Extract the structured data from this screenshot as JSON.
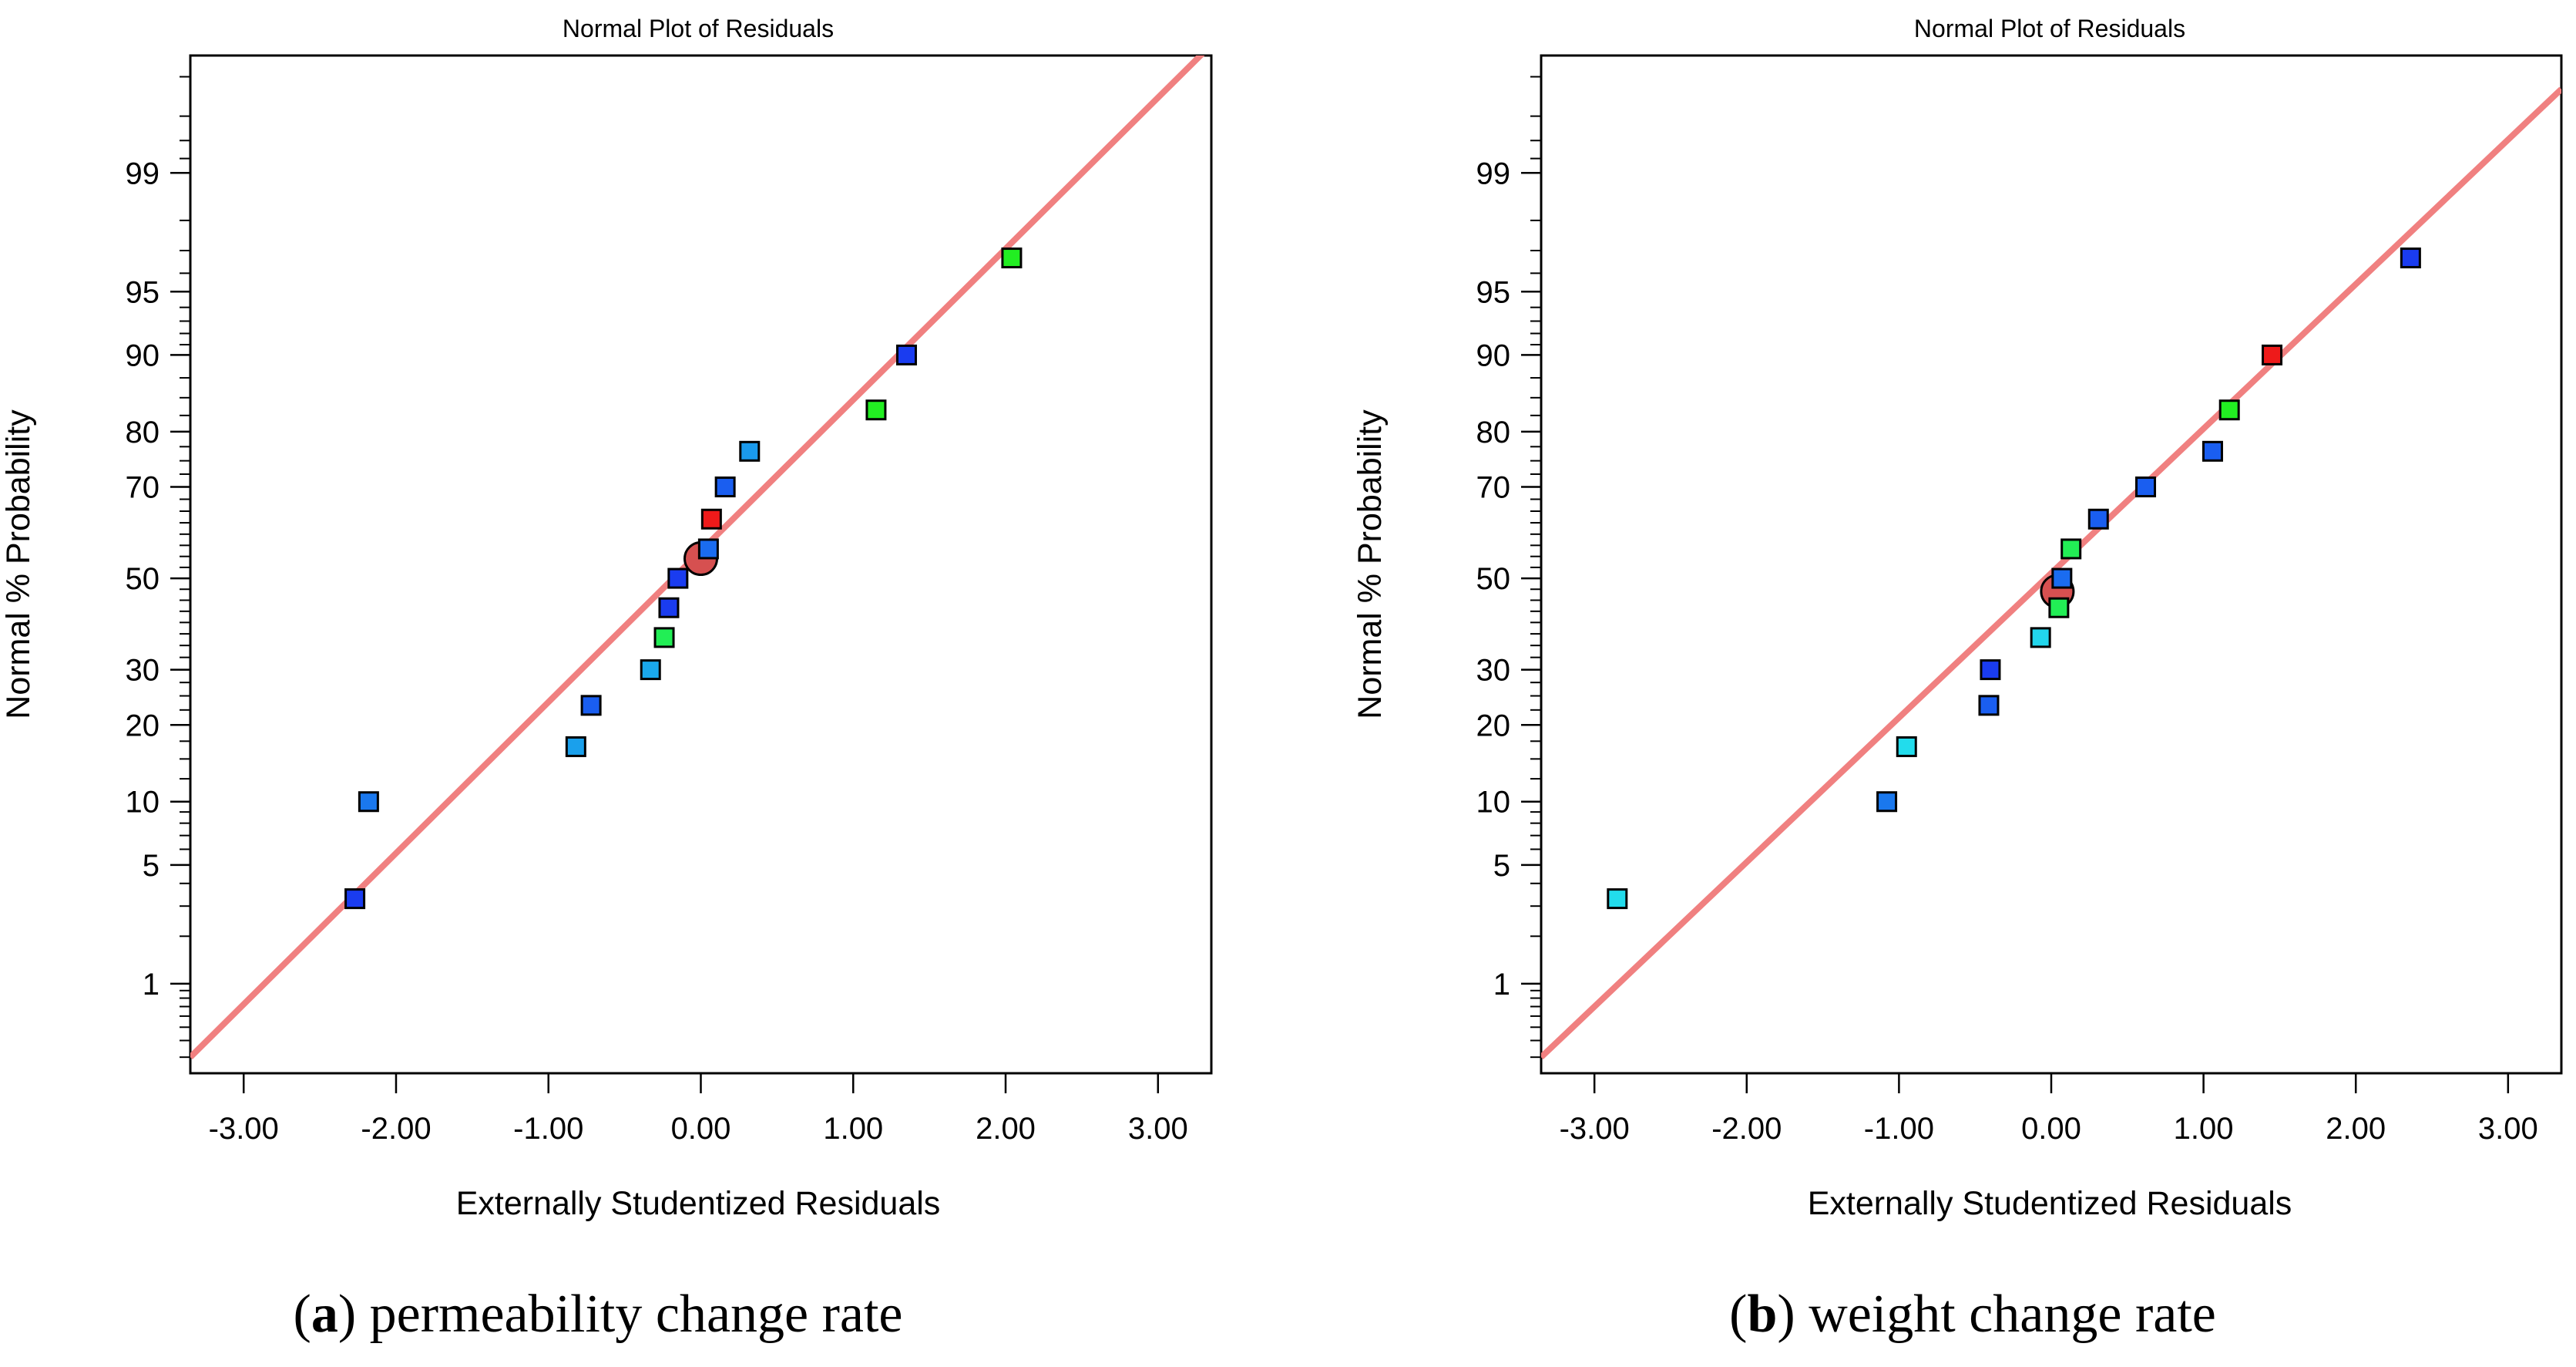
{
  "chart_data": [
    {
      "type": "scatter",
      "title": "Normal Plot of Residuals",
      "xlabel": "Externally Studentized Residuals",
      "ylabel": "Normal % Probability",
      "caption": {
        "letter": "a",
        "text": "permeability change rate"
      },
      "xlim": [
        -3.35,
        3.35
      ],
      "x_ticks": [
        "-3.00",
        "-2.00",
        "-1.00",
        "0.00",
        "1.00",
        "2.00",
        "3.00"
      ],
      "y_scale": "normal-probability",
      "y_ticks": [
        "1",
        "5",
        "10",
        "20",
        "30",
        "50",
        "70",
        "80",
        "90",
        "95",
        "99"
      ],
      "grid": false,
      "reference_line": {
        "color": "#f08080",
        "x": [
          -3.35,
          3.35
        ],
        "y": [
          0.3,
          99.89
        ]
      },
      "series": [
        {
          "points": [
            {
              "x": -2.27,
              "y": 3.3,
              "color": "#1a3cf0"
            },
            {
              "x": -2.18,
              "y": 10.0,
              "color": "#1a78ee"
            },
            {
              "x": -0.72,
              "y": 23.3,
              "color": "#1a5ef0"
            },
            {
              "x": -0.82,
              "y": 16.7,
              "color": "#1aa0ec"
            },
            {
              "x": -0.33,
              "y": 30.0,
              "color": "#1aa8ec"
            },
            {
              "x": -0.24,
              "y": 36.7,
              "color": "#22ee55"
            },
            {
              "x": -0.21,
              "y": 43.3,
              "color": "#1a3cf0"
            },
            {
              "x": -0.15,
              "y": 50.0,
              "color": "#1a3cf0"
            },
            {
              "x": 0.05,
              "y": 56.7,
              "color": "#1a6cf0"
            },
            {
              "x": 0.07,
              "y": 63.3,
              "color": "#ee1a1a"
            },
            {
              "x": 0.16,
              "y": 70.0,
              "color": "#1a5ef0"
            },
            {
              "x": 0.32,
              "y": 76.7,
              "color": "#1a9aec"
            },
            {
              "x": 1.15,
              "y": 83.3,
              "color": "#22ee22"
            },
            {
              "x": 1.35,
              "y": 90.0,
              "color": "#1a3cf0"
            },
            {
              "x": 2.04,
              "y": 96.7,
              "color": "#22ee22"
            }
          ]
        }
      ],
      "highlight_point": {
        "x": 0.0,
        "y": 54.5,
        "color": "#d65050"
      }
    },
    {
      "type": "scatter",
      "title": "Normal Plot of Residuals",
      "xlabel": "Externally Studentized Residuals",
      "ylabel": "Normal % Probability",
      "caption": {
        "letter": "b",
        "text": "weight change rate"
      },
      "xlim": [
        -3.35,
        3.35
      ],
      "x_ticks": [
        "-3.00",
        "-2.00",
        "-1.00",
        "0.00",
        "1.00",
        "2.00",
        "3.00"
      ],
      "y_scale": "normal-probability",
      "y_ticks": [
        "1",
        "5",
        "10",
        "20",
        "30",
        "50",
        "70",
        "80",
        "90",
        "95",
        "99"
      ],
      "grid": false,
      "reference_line": {
        "color": "#f08080",
        "x": [
          -3.35,
          3.35
        ],
        "y": [
          0.3,
          99.75
        ]
      },
      "series": [
        {
          "points": [
            {
              "x": -2.85,
              "y": 3.3,
              "color": "#22dcec"
            },
            {
              "x": -1.08,
              "y": 10.0,
              "color": "#1a78ee"
            },
            {
              "x": -0.95,
              "y": 16.7,
              "color": "#22dcec"
            },
            {
              "x": -0.41,
              "y": 23.3,
              "color": "#1a5ef0"
            },
            {
              "x": -0.4,
              "y": 30.0,
              "color": "#1a3cf0"
            },
            {
              "x": -0.07,
              "y": 36.7,
              "color": "#22d6ec"
            },
            {
              "x": 0.05,
              "y": 43.3,
              "color": "#22ee55"
            },
            {
              "x": 0.07,
              "y": 50.0,
              "color": "#1a6cf0"
            },
            {
              "x": 0.13,
              "y": 56.7,
              "color": "#22ee55"
            },
            {
              "x": 0.31,
              "y": 63.3,
              "color": "#1a5ef0"
            },
            {
              "x": 0.62,
              "y": 70.0,
              "color": "#1a5ef0"
            },
            {
              "x": 1.06,
              "y": 76.7,
              "color": "#1a5ef0"
            },
            {
              "x": 1.17,
              "y": 83.3,
              "color": "#22ee22"
            },
            {
              "x": 1.45,
              "y": 90.0,
              "color": "#ee1a1a"
            },
            {
              "x": 2.36,
              "y": 96.7,
              "color": "#1a3cf0"
            }
          ]
        }
      ],
      "highlight_point": {
        "x": 0.04,
        "y": 47.0,
        "color": "#d65050"
      }
    }
  ]
}
